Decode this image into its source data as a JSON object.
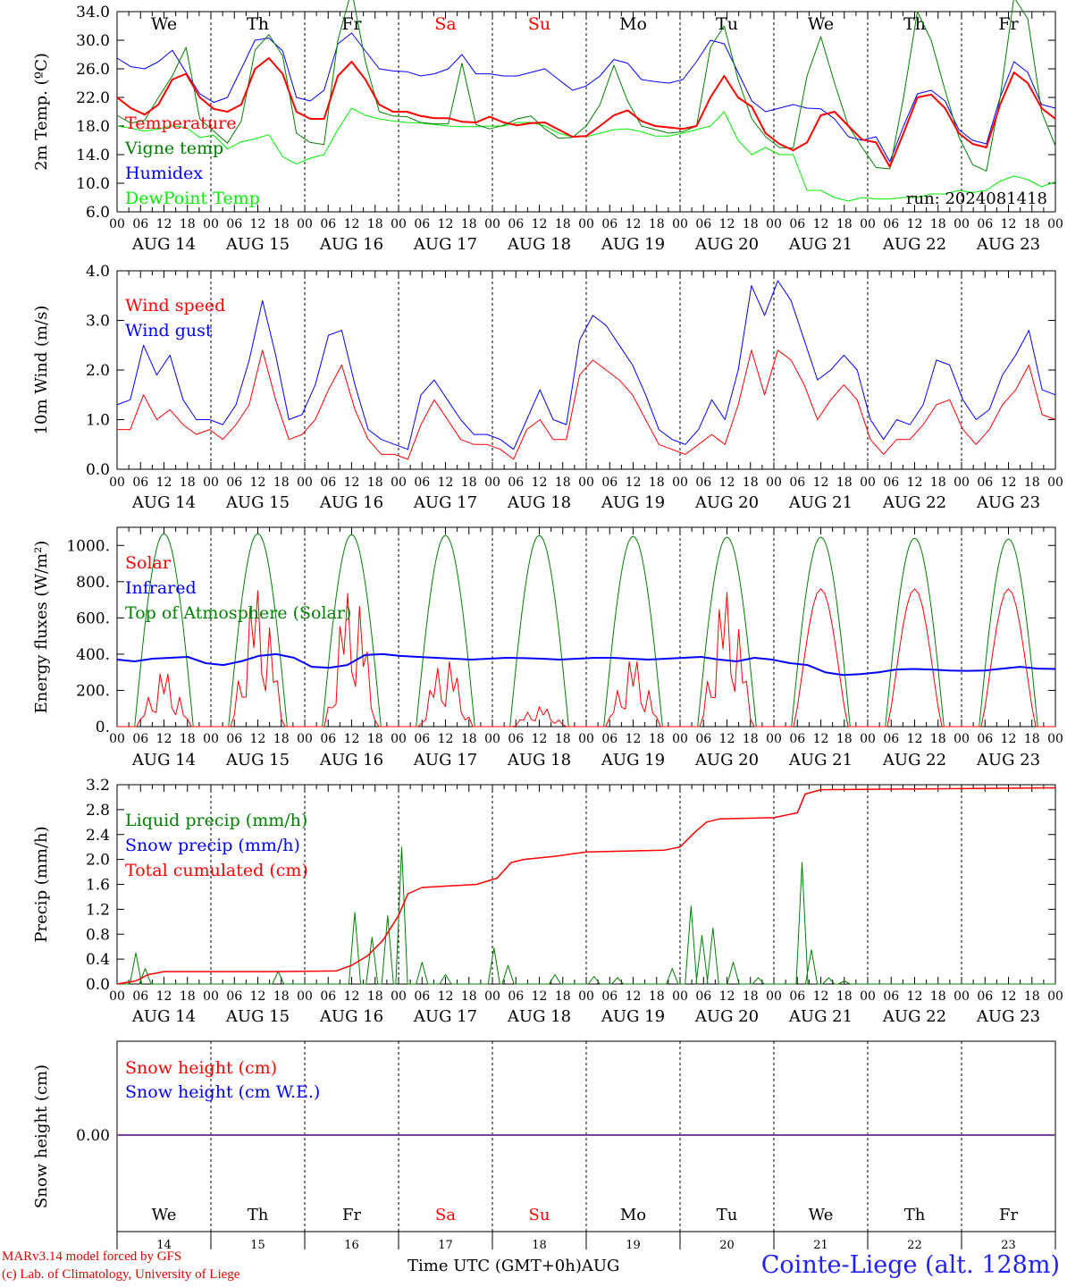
{
  "run_label": "run: 2024081418",
  "x_axis": {
    "hour_ticks": [
      "00",
      "06",
      "12",
      "18"
    ],
    "date_labels": [
      "AUG 14",
      "AUG 15",
      "AUG 16",
      "AUG 17",
      "AUG 18",
      "AUG 19",
      "AUG 20",
      "AUG 21",
      "AUG 22",
      "AUG 23"
    ],
    "weekdays": [
      {
        "label": "We",
        "color": "#000000"
      },
      {
        "label": "Th",
        "color": "#000000"
      },
      {
        "label": "Fr",
        "color": "#000000"
      },
      {
        "label": "Sa",
        "color": "#ff0000"
      },
      {
        "label": "Su",
        "color": "#ff0000"
      },
      {
        "label": "Mo",
        "color": "#000000"
      },
      {
        "label": "Tu",
        "color": "#000000"
      },
      {
        "label": "We",
        "color": "#000000"
      },
      {
        "label": "Th",
        "color": "#000000"
      },
      {
        "label": "Fr",
        "color": "#000000"
      }
    ],
    "day_numbers": [
      "14",
      "15",
      "16",
      "17",
      "18",
      "19",
      "20",
      "21",
      "22",
      "23"
    ],
    "month": "AUG",
    "title": "Time UTC (GMT+0h)"
  },
  "footer": {
    "credit_line1": "MARv3.14 model forced by GFS",
    "credit_line2": "(c) Lab. of Climatology, University of Liege",
    "station": "Cointe-Liege (alt. 128m)"
  },
  "chart_data": [
    {
      "type": "line",
      "ylabel": "2m Temp. (ºC)",
      "ylim": [
        6.0,
        34.0
      ],
      "yticks": [
        "6.0",
        "10.0",
        "14.0",
        "18.0",
        "22.0",
        "26.0",
        "30.0",
        "34.0"
      ],
      "series": [
        {
          "name": "Temperature",
          "color": "#ff0000",
          "width": 2,
          "y": [
            22,
            20.5,
            19.6,
            21,
            24.5,
            25.3,
            22,
            20.4,
            20,
            21,
            26,
            27.5,
            25.3,
            20,
            19,
            19,
            25,
            27,
            24.5,
            21,
            20,
            20,
            19.4,
            19.1,
            19.1,
            18.6,
            18.5,
            19.3,
            18.5,
            18.1,
            18.4,
            18.5,
            17.5,
            16.5,
            16.6,
            18,
            19.5,
            20.2,
            18.7,
            18,
            17.8,
            17.6,
            18,
            22,
            25,
            22,
            20.7,
            17,
            15.5,
            14.6,
            15.7,
            19.5,
            20,
            18,
            16.1,
            15.7,
            12.3,
            17,
            22,
            22.4,
            20.5,
            17,
            15.5,
            15,
            21,
            25.5,
            24,
            20.5,
            19
          ]
        },
        {
          "name": "Vigne temp",
          "color": "#008000",
          "width": 1,
          "y": [
            19.5,
            18.4,
            18.8,
            22,
            25,
            29,
            19,
            17.3,
            15.6,
            18.7,
            28.6,
            30.8,
            27.8,
            17,
            15.7,
            15.4,
            30,
            37,
            27,
            20,
            19.4,
            19.3,
            18.5,
            18.3,
            18.3,
            26.8,
            18.2,
            17.6,
            18.1,
            19,
            19.4,
            17.6,
            16.3,
            16.4,
            18,
            21,
            26.5,
            21.5,
            18,
            17.5,
            17,
            17.2,
            18,
            29,
            32,
            24.5,
            19,
            16.5,
            15,
            14.9,
            25,
            30.5,
            24,
            18,
            15,
            12.2,
            12,
            22,
            34,
            30,
            23,
            16.5,
            12.6,
            11.7,
            22,
            36,
            33,
            20,
            15.2
          ]
        },
        {
          "name": "Humidex",
          "color": "#0000ff",
          "width": 1,
          "y": [
            27.5,
            26.3,
            26,
            27,
            28.6,
            25.5,
            22.5,
            21.3,
            22,
            26,
            30,
            30.3,
            28.5,
            22,
            21.5,
            23,
            29.5,
            31,
            28.5,
            26,
            25.7,
            25.6,
            25,
            25.3,
            26,
            28,
            25.3,
            25.3,
            25,
            25,
            25.5,
            26,
            24.5,
            23,
            23.6,
            25,
            27.3,
            26.8,
            24.5,
            24.2,
            24,
            24.5,
            27,
            30,
            29.5,
            25.5,
            21.5,
            20,
            20.5,
            21,
            20.5,
            20.4,
            19,
            16.5,
            16,
            16.5,
            13,
            18,
            22.5,
            23,
            21.5,
            17.5,
            16,
            15.5,
            22,
            27,
            25.5,
            21,
            20.5
          ]
        },
        {
          "name": "DewPoint Temp",
          "color": "#00ee00",
          "width": 1,
          "y": [
            18,
            17.7,
            17.3,
            17.6,
            18,
            17.8,
            16.4,
            16.7,
            14.8,
            15.8,
            16.2,
            16.8,
            13.7,
            12.7,
            13.5,
            14,
            17.5,
            20.5,
            19.5,
            19,
            18.7,
            18.5,
            18.4,
            18.2,
            18,
            17.9,
            17.9,
            18,
            18,
            18.5,
            18.5,
            18,
            17,
            16.5,
            16.5,
            17,
            17.5,
            17.6,
            17.2,
            16.6,
            16.6,
            17,
            17.5,
            18,
            20,
            16,
            14,
            15,
            14,
            14,
            9,
            9,
            8,
            7.5,
            8,
            7.8,
            7.8,
            8,
            8,
            8.5,
            8.5,
            9,
            8.7,
            9,
            10.3,
            11,
            10.5,
            9.5,
            10.2
          ]
        }
      ],
      "legend": [
        "Temperature",
        "Vigne temp",
        "Humidex",
        "DewPoint Temp"
      ]
    },
    {
      "type": "line",
      "ylabel": "10m Wind (m/s)",
      "ylim": [
        0.0,
        4.0
      ],
      "yticks": [
        "0.0",
        "1.0",
        "2.0",
        "3.0",
        "4.0"
      ],
      "series": [
        {
          "name": "Wind speed",
          "color": "#ff0000",
          "width": 1,
          "y": [
            0.8,
            0.8,
            1.5,
            1.0,
            1.2,
            0.9,
            0.7,
            0.8,
            0.6,
            0.9,
            1.3,
            2.4,
            1.4,
            0.6,
            0.7,
            1.0,
            1.6,
            2.1,
            1.2,
            0.6,
            0.3,
            0.3,
            0.2,
            0.9,
            1.4,
            1.0,
            0.6,
            0.5,
            0.5,
            0.4,
            0.2,
            0.8,
            1.0,
            0.6,
            0.6,
            1.9,
            2.2,
            2.0,
            1.8,
            1.5,
            1.0,
            0.5,
            0.4,
            0.3,
            0.5,
            0.7,
            0.5,
            1.3,
            2.4,
            1.5,
            2.4,
            2.2,
            1.7,
            1.0,
            1.4,
            1.7,
            1.4,
            0.6,
            0.3,
            0.6,
            0.6,
            0.9,
            1.3,
            1.4,
            0.8,
            0.5,
            0.8,
            1.3,
            1.6,
            2.1,
            1.1,
            1.0
          ]
        },
        {
          "name": "Wind gust",
          "color": "#0000ff",
          "width": 1,
          "y": [
            1.3,
            1.4,
            2.5,
            1.9,
            2.3,
            1.4,
            1.0,
            1.0,
            0.9,
            1.3,
            2.2,
            3.4,
            2.3,
            1.0,
            1.1,
            1.7,
            2.7,
            2.8,
            1.7,
            0.8,
            0.6,
            0.5,
            0.4,
            1.5,
            1.8,
            1.4,
            1.0,
            0.7,
            0.7,
            0.6,
            0.4,
            1.0,
            1.6,
            1.0,
            0.9,
            2.6,
            3.1,
            2.9,
            2.5,
            2.1,
            1.5,
            0.8,
            0.6,
            0.5,
            0.8,
            1.4,
            1.0,
            2.0,
            3.7,
            3.1,
            3.8,
            3.4,
            2.6,
            1.8,
            2.0,
            2.3,
            2.0,
            1.0,
            0.6,
            1.0,
            0.9,
            1.3,
            2.2,
            2.1,
            1.4,
            1.0,
            1.2,
            1.9,
            2.3,
            2.8,
            1.6,
            1.5
          ]
        }
      ],
      "legend": [
        "Wind speed",
        "Wind gust"
      ]
    },
    {
      "type": "line",
      "ylabel": "Energy fluxes (W/m²)",
      "ylim": [
        0,
        1100
      ],
      "yticks": [
        "0.",
        "200.",
        "400.",
        "600.",
        "800.",
        "1000."
      ],
      "series": [
        {
          "name": "Solar",
          "color": "#ff0000",
          "width": 1,
          "peaks": [
            300,
            750,
            760,
            370,
            110,
            370,
            740,
            760,
            760,
            760
          ]
        },
        {
          "name": "Infrared",
          "color": "#0000ff",
          "width": 2,
          "y": [
            370,
            360,
            375,
            380,
            385,
            350,
            340,
            360,
            390,
            400,
            380,
            330,
            325,
            340,
            395,
            400,
            390,
            385,
            380,
            375,
            370,
            375,
            380,
            378,
            375,
            370,
            375,
            380,
            380,
            375,
            370,
            375,
            380,
            385,
            370,
            360,
            380,
            370,
            350,
            340,
            300,
            285,
            290,
            300,
            315,
            318,
            315,
            310,
            308,
            310,
            320,
            330,
            320,
            318
          ]
        },
        {
          "name": "Top of Atmosphere (Solar)",
          "color": "#008000",
          "width": 1,
          "peaks": [
            1065,
            1065,
            1060,
            1055,
            1055,
            1050,
            1045,
            1045,
            1040,
            1035
          ]
        }
      ],
      "legend": [
        "Solar",
        "Infrared",
        "Top of Atmosphere (Solar)"
      ]
    },
    {
      "type": "line",
      "ylabel": "Precip (mm/h)",
      "ylim": [
        0.0,
        3.2
      ],
      "yticks": [
        "0.0",
        "0.4",
        "0.8",
        "1.2",
        "1.6",
        "2.0",
        "2.4",
        "2.8",
        "3.2"
      ],
      "series": [
        {
          "name": "Liquid precip (mm/h)",
          "color": "#008000",
          "width": 1,
          "spikes": [
            [
              1.2,
              0.5
            ],
            [
              1.8,
              0.25
            ],
            [
              10.3,
              0.2
            ],
            [
              15.2,
              1.15
            ],
            [
              16.3,
              0.75
            ],
            [
              17.3,
              1.1
            ],
            [
              18.2,
              2.2
            ],
            [
              19.5,
              0.35
            ],
            [
              21,
              0.15
            ],
            [
              24.1,
              0.58
            ],
            [
              25,
              0.3
            ],
            [
              28,
              0.15
            ],
            [
              30.5,
              0.12
            ],
            [
              32,
              0.1
            ],
            [
              35.5,
              0.25
            ],
            [
              36.7,
              1.25
            ],
            [
              37.4,
              0.78
            ],
            [
              38.1,
              0.9
            ],
            [
              39.4,
              0.35
            ],
            [
              41,
              0.1
            ],
            [
              43.8,
              1.95
            ],
            [
              44.4,
              0.55
            ],
            [
              45.5,
              0.1
            ],
            [
              46.5,
              0.05
            ]
          ]
        },
        {
          "name": "Snow precip (mm/h)",
          "color": "#0000ff",
          "width": 1,
          "y": []
        },
        {
          "name": "Total cumulated (cm)",
          "color": "#ff0000",
          "width": 1.5,
          "y": [
            [
              0,
              0
            ],
            [
              1.2,
              0.05
            ],
            [
              2,
              0.15
            ],
            [
              3,
              0.2
            ],
            [
              10,
              0.2
            ],
            [
              14,
              0.21
            ],
            [
              15,
              0.3
            ],
            [
              16,
              0.45
            ],
            [
              17,
              0.7
            ],
            [
              18,
              1.1
            ],
            [
              18.6,
              1.45
            ],
            [
              19.5,
              1.55
            ],
            [
              23,
              1.6
            ],
            [
              24.3,
              1.7
            ],
            [
              25.2,
              1.95
            ],
            [
              26,
              2
            ],
            [
              28,
              2.05
            ],
            [
              30,
              2.12
            ],
            [
              35,
              2.15
            ],
            [
              36,
              2.2
            ],
            [
              37,
              2.45
            ],
            [
              37.7,
              2.6
            ],
            [
              38.5,
              2.65
            ],
            [
              42,
              2.67
            ],
            [
              43.5,
              2.75
            ],
            [
              44,
              3.05
            ],
            [
              45,
              3.12
            ],
            [
              60,
              3.15
            ]
          ]
        }
      ],
      "legend": [
        "Liquid precip (mm/h)",
        "Snow precip (mm/h)",
        "Total cumulated (cm)"
      ]
    },
    {
      "type": "line",
      "ylabel": "Snow height (cm)",
      "yticks": [
        "0.00"
      ],
      "series": [
        {
          "name": "Snow height (cm)",
          "color": "#ff0000",
          "width": 1,
          "y": [
            0,
            0
          ]
        },
        {
          "name": "Snow height (cm W.E.)",
          "color": "#0000ff",
          "width": 1,
          "y": [
            0,
            0
          ]
        }
      ],
      "legend": [
        "Snow height (cm)",
        "Snow height (cm W.E.)"
      ]
    }
  ]
}
